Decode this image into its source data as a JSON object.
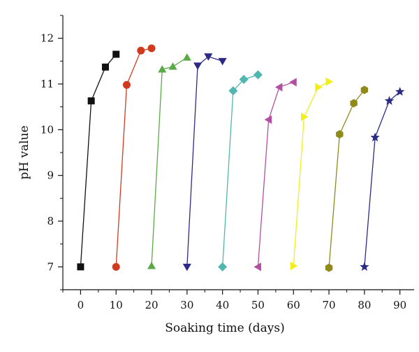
{
  "chart_data": {
    "type": "line",
    "title": "",
    "xlabel": "Soaking time (days)",
    "ylabel": "pH value",
    "xlim": [
      -5,
      94
    ],
    "ylim": [
      6.5,
      12.5
    ],
    "xticks": [
      0,
      10,
      20,
      30,
      40,
      50,
      60,
      70,
      80,
      90
    ],
    "yticks": [
      7,
      8,
      9,
      10,
      11,
      12
    ],
    "grid": false,
    "legend": "none",
    "series": [
      {
        "marker": "square",
        "color": "#111111",
        "points": [
          [
            0,
            7.0
          ],
          [
            3,
            10.63
          ],
          [
            7,
            11.37
          ],
          [
            10,
            11.65
          ]
        ]
      },
      {
        "marker": "circle",
        "color": "#d13a1f",
        "points": [
          [
            10,
            7.0
          ],
          [
            13,
            10.98
          ],
          [
            17,
            11.73
          ],
          [
            20,
            11.78
          ]
        ]
      },
      {
        "marker": "triangle-up",
        "color": "#5aaa46",
        "points": [
          [
            20,
            7.02
          ],
          [
            23,
            11.32
          ],
          [
            26,
            11.38
          ],
          [
            30,
            11.58
          ]
        ]
      },
      {
        "marker": "triangle-down",
        "color": "#2c2a86",
        "points": [
          [
            30,
            7.0
          ],
          [
            33,
            11.4
          ],
          [
            36,
            11.6
          ],
          [
            40,
            11.5
          ]
        ]
      },
      {
        "marker": "diamond",
        "color": "#4fb6b0",
        "points": [
          [
            40,
            7.0
          ],
          [
            43,
            10.85
          ],
          [
            46,
            11.1
          ],
          [
            50,
            11.2
          ]
        ]
      },
      {
        "marker": "triangle-left",
        "color": "#b24fa0",
        "points": [
          [
            50,
            7.0
          ],
          [
            53,
            10.22
          ],
          [
            56,
            10.93
          ],
          [
            60,
            11.04
          ]
        ]
      },
      {
        "marker": "triangle-right",
        "color": "#f2ee1c",
        "points": [
          [
            60,
            7.02
          ],
          [
            63,
            10.28
          ],
          [
            67,
            10.93
          ],
          [
            70,
            11.05
          ]
        ]
      },
      {
        "marker": "hexagon",
        "color": "#8f8a1a",
        "points": [
          [
            70,
            6.98
          ],
          [
            73,
            9.9
          ],
          [
            77,
            10.58
          ],
          [
            80,
            10.87
          ]
        ]
      },
      {
        "marker": "star",
        "color": "#2a2b84",
        "points": [
          [
            80,
            7.0
          ],
          [
            83,
            9.83
          ],
          [
            87,
            10.63
          ],
          [
            90,
            10.83
          ]
        ]
      }
    ]
  }
}
